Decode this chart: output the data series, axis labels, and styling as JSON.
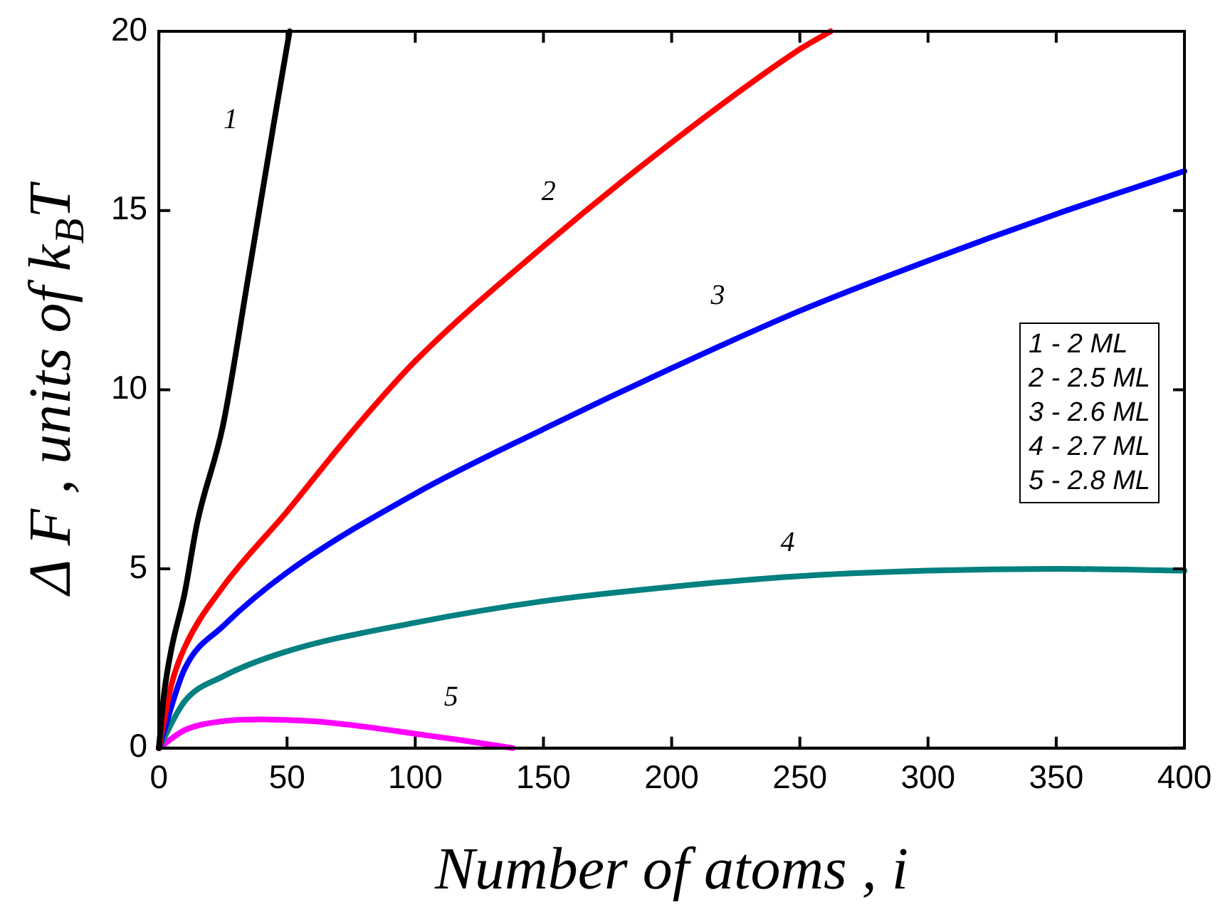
{
  "chart_data": {
    "type": "line",
    "xlabel": "Number of atoms , i",
    "ylabel": "Δ F , units of k$_{B}$T",
    "xlim": [
      0,
      400
    ],
    "xticks": [
      0,
      50,
      100,
      150,
      200,
      250,
      300,
      350,
      400
    ],
    "ylim": [
      0,
      20
    ],
    "yticks": [
      0,
      5,
      10,
      15,
      20
    ],
    "grid": false,
    "legend": false,
    "marker": "none",
    "line_style": "solid",
    "series": [
      {
        "color": "#000000",
        "x": [
          0,
          2,
          5,
          10,
          15,
          25,
          35,
          45,
          51
        ],
        "values": [
          0,
          1.5,
          2.8,
          4.3,
          6.3,
          9,
          13.2,
          17.5,
          20
        ]
      },
      {
        "color": "#ff0000",
        "x": [
          0,
          5,
          10,
          25,
          50,
          75,
          100,
          150,
          200,
          250,
          262
        ],
        "values": [
          0,
          1.8,
          2.8,
          4.5,
          6.6,
          8.8,
          10.8,
          14,
          16.9,
          19.5,
          20
        ]
      },
      {
        "color": "#0000ff",
        "x": [
          0,
          10,
          25,
          50,
          100,
          150,
          200,
          250,
          300,
          350,
          400
        ],
        "values": [
          0,
          2.2,
          3.4,
          4.9,
          7.1,
          8.9,
          10.6,
          12.2,
          13.6,
          14.9,
          16.1
        ]
      },
      {
        "color": "#008080",
        "x": [
          0,
          10,
          25,
          50,
          100,
          150,
          200,
          250,
          300,
          350,
          400
        ],
        "values": [
          0,
          1.3,
          2,
          2.7,
          3.5,
          4.1,
          4.5,
          4.8,
          4.95,
          5,
          4.95
        ]
      },
      {
        "color": "#ff00ff",
        "x": [
          0,
          10,
          25,
          40,
          60,
          80,
          100,
          120,
          138
        ],
        "values": [
          0,
          0.5,
          0.75,
          0.8,
          0.75,
          0.6,
          0.4,
          0.2,
          0
        ]
      }
    ],
    "annotations": [
      "1",
      "2",
      "3",
      "4",
      "5",
      "1 - 2 ML",
      "2 - 2.5 ML",
      "3 - 2.6 ML",
      "4 - 2.7 ML",
      "5 - 2.8 ML"
    ]
  }
}
